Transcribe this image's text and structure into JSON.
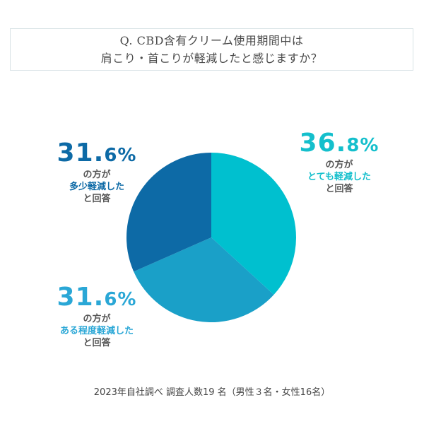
{
  "question": {
    "line1": "Q. CBD含有クリーム使用期間中は",
    "line2": "肩こり・首こりが軽減したと感じますか？"
  },
  "chart_data": {
    "type": "pie",
    "title": "Q. CBD含有クリーム使用期間中は 肩こり・首こりが軽減したと感じますか？",
    "slices": [
      {
        "label": "とても軽減した",
        "value": 36.8,
        "color": "#00c0cf"
      },
      {
        "label": "ある程度軽減した",
        "value": 31.6,
        "color": "#1aa0c8"
      },
      {
        "label": "多少軽減した",
        "value": 31.6,
        "color": "#0d6aa6"
      }
    ],
    "start_angle_deg": 0,
    "direction": "clockwise"
  },
  "labels": {
    "a": {
      "int": "36.",
      "dec": "8%",
      "line1": "の方が",
      "line2": "とても軽減した",
      "line3": "と回答",
      "color": "#14bfcc"
    },
    "b": {
      "int": "31.",
      "dec": "6%",
      "line1": "の方が",
      "line2": "多少軽減した",
      "line3": "と回答",
      "color": "#0d6aa6"
    },
    "c": {
      "int": "31.",
      "dec": "6%",
      "line1": "の方が",
      "line2": "ある程度軽減した",
      "line3": "と回答",
      "color": "#2aa7d6"
    }
  },
  "footnote": "2023年自社調べ 調査人数19 名（男性３名・女性16名）"
}
